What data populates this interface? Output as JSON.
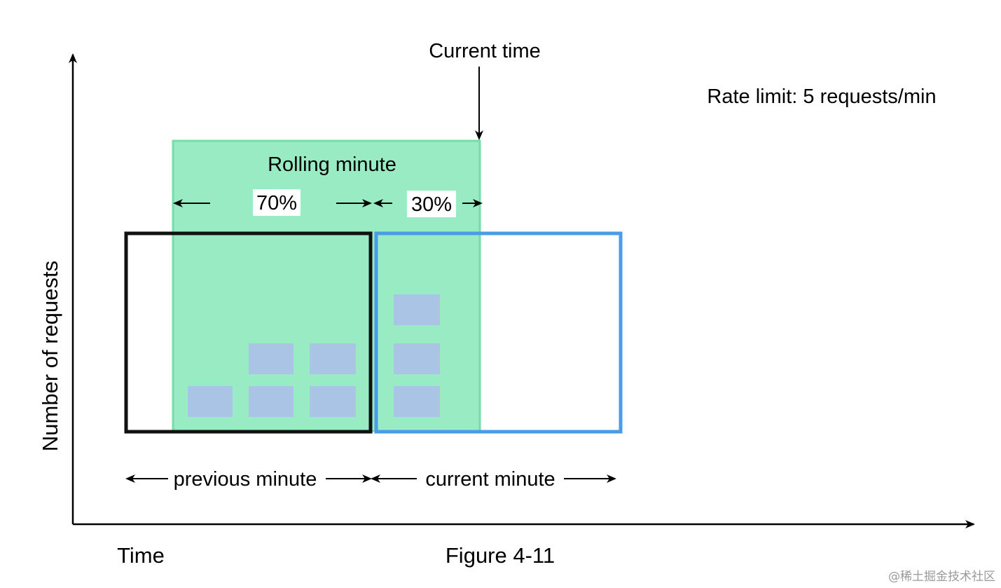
{
  "diagram": {
    "current_time_label": "Current time",
    "rate_limit_label": "Rate limit: 5 requests/min",
    "rolling_minute_label": "Rolling minute",
    "previous_pct_label": "70%",
    "current_pct_label": "30%",
    "y_axis_label": "Number of requests",
    "x_axis_label": "Time",
    "previous_minute_label": "previous minute",
    "current_minute_label": "current minute",
    "figure_caption": "Figure 4-11",
    "watermark": "@稀土掘金技术社区"
  },
  "colors": {
    "rolling_fill": "#99EBC4",
    "rolling_border": "#78DCA8",
    "previous_window_border": "#111111",
    "current_window_border": "#4A9BE8",
    "request_block": "#A9C4E4",
    "axis": "#000000"
  },
  "counts": {
    "previous_minute_requests": 5,
    "current_minute_requests": 3
  }
}
